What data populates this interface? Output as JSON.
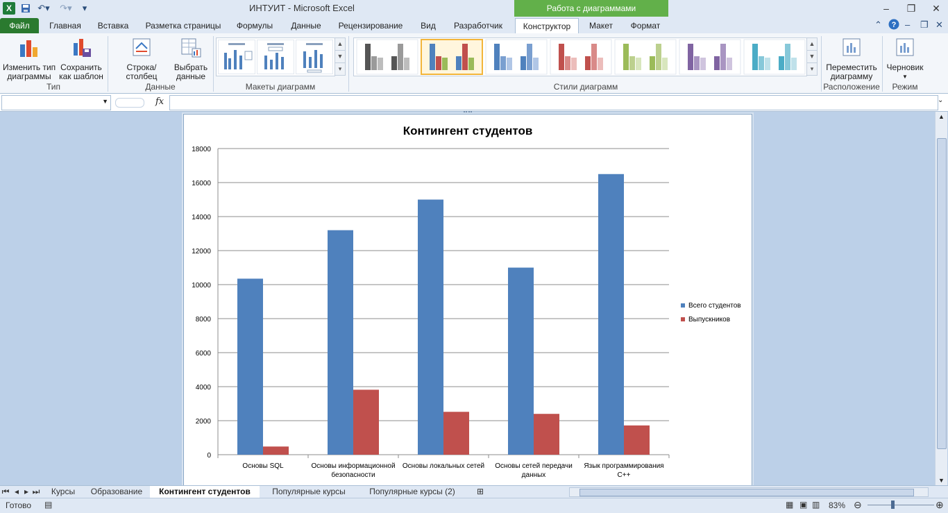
{
  "window": {
    "title": "ИНТУИТ  -  Microsoft Excel",
    "context_tab_group": "Работа с диаграммами",
    "app_icon": "excel-icon"
  },
  "tabs": [
    "Файл",
    "Главная",
    "Вставка",
    "Разметка страницы",
    "Формулы",
    "Данные",
    "Рецензирование",
    "Вид",
    "Разработчик",
    "Конструктор",
    "Макет",
    "Формат"
  ],
  "active_tab": "Конструктор",
  "ribbon": {
    "type_group": {
      "label": "Тип",
      "change_type": "Изменить тип\nдиаграммы",
      "save_template": "Сохранить\nкак шаблон"
    },
    "data_group": {
      "label": "Данные",
      "switch_row_col": "Строка/столбец",
      "select_data": "Выбрать\nданные"
    },
    "layouts_group": {
      "label": "Макеты диаграмм"
    },
    "styles_group": {
      "label": "Стили диаграмм"
    },
    "location_group": {
      "label": "Расположение",
      "move_chart": "Переместить\nдиаграмму"
    },
    "mode_group": {
      "label": "Режим",
      "draft": "Черновик"
    }
  },
  "style_palettes": [
    [
      "#555555",
      "#9a9a9a",
      "#bdbdbd"
    ],
    [
      "#4f81bd",
      "#c0504d",
      "#9bbb59"
    ],
    [
      "#4f81bd",
      "#7a9fd0",
      "#b0c6e6"
    ],
    [
      "#c0504d",
      "#d98a88",
      "#ecbdbb"
    ],
    [
      "#9bbb59",
      "#bcd08e",
      "#d8e6bd"
    ],
    [
      "#8064a2",
      "#a995c2",
      "#cfc4de"
    ],
    [
      "#4bacc6",
      "#87c8d9",
      "#bfe1ea"
    ]
  ],
  "formula_bar": {
    "name_box": "",
    "fx": "fx",
    "formula": ""
  },
  "chart_data": {
    "type": "bar",
    "title": "Контингент студентов",
    "categories": [
      "Основы SQL",
      "Основы информационной безопасности",
      "Основы локальных сетей",
      "Основы сетей передачи данных",
      "Язык программирования C++"
    ],
    "category_lines": [
      [
        "Основы SQL"
      ],
      [
        "Основы информационной",
        "безопасности"
      ],
      [
        "Основы локальных сетей"
      ],
      [
        "Основы сетей передачи",
        "данных"
      ],
      [
        "Язык программирования",
        "C++"
      ]
    ],
    "series": [
      {
        "name": "Всего студентов",
        "color": "#4f81bd",
        "values": [
          10350,
          13200,
          15000,
          11000,
          16500
        ]
      },
      {
        "name": "Выпускников",
        "color": "#c0504d",
        "values": [
          480,
          3820,
          2520,
          2400,
          1720
        ]
      }
    ],
    "ylim": [
      0,
      18000
    ],
    "yticks": [
      0,
      2000,
      4000,
      6000,
      8000,
      10000,
      12000,
      14000,
      16000,
      18000
    ],
    "grid": true,
    "legend_position": "right"
  },
  "sheet_tabs": [
    "Курсы",
    "Образование",
    "Контингент студентов",
    "Популярные курсы",
    "Популярные курсы (2)"
  ],
  "active_sheet": "Контингент студентов",
  "status": {
    "ready": "Готово",
    "zoom": "83%"
  }
}
